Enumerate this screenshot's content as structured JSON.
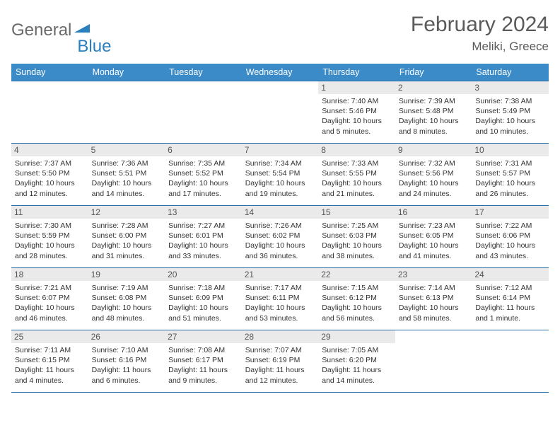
{
  "logo": {
    "text1": "General",
    "text2": "Blue"
  },
  "title": "February 2024",
  "location": "Meliki, Greece",
  "colors": {
    "header_bg": "#3b8bc9",
    "header_border": "#2a6ea5",
    "daynum_bg": "#eaeaea",
    "logo_grey": "#6a6a6a",
    "logo_blue": "#2a7fbf"
  },
  "weekdays": [
    "Sunday",
    "Monday",
    "Tuesday",
    "Wednesday",
    "Thursday",
    "Friday",
    "Saturday"
  ],
  "weeks": [
    [
      {
        "n": "",
        "sunrise": "",
        "sunset": "",
        "daylight": ""
      },
      {
        "n": "",
        "sunrise": "",
        "sunset": "",
        "daylight": ""
      },
      {
        "n": "",
        "sunrise": "",
        "sunset": "",
        "daylight": ""
      },
      {
        "n": "",
        "sunrise": "",
        "sunset": "",
        "daylight": ""
      },
      {
        "n": "1",
        "sunrise": "Sunrise: 7:40 AM",
        "sunset": "Sunset: 5:46 PM",
        "daylight": "Daylight: 10 hours and 5 minutes."
      },
      {
        "n": "2",
        "sunrise": "Sunrise: 7:39 AM",
        "sunset": "Sunset: 5:48 PM",
        "daylight": "Daylight: 10 hours and 8 minutes."
      },
      {
        "n": "3",
        "sunrise": "Sunrise: 7:38 AM",
        "sunset": "Sunset: 5:49 PM",
        "daylight": "Daylight: 10 hours and 10 minutes."
      }
    ],
    [
      {
        "n": "4",
        "sunrise": "Sunrise: 7:37 AM",
        "sunset": "Sunset: 5:50 PM",
        "daylight": "Daylight: 10 hours and 12 minutes."
      },
      {
        "n": "5",
        "sunrise": "Sunrise: 7:36 AM",
        "sunset": "Sunset: 5:51 PM",
        "daylight": "Daylight: 10 hours and 14 minutes."
      },
      {
        "n": "6",
        "sunrise": "Sunrise: 7:35 AM",
        "sunset": "Sunset: 5:52 PM",
        "daylight": "Daylight: 10 hours and 17 minutes."
      },
      {
        "n": "7",
        "sunrise": "Sunrise: 7:34 AM",
        "sunset": "Sunset: 5:54 PM",
        "daylight": "Daylight: 10 hours and 19 minutes."
      },
      {
        "n": "8",
        "sunrise": "Sunrise: 7:33 AM",
        "sunset": "Sunset: 5:55 PM",
        "daylight": "Daylight: 10 hours and 21 minutes."
      },
      {
        "n": "9",
        "sunrise": "Sunrise: 7:32 AM",
        "sunset": "Sunset: 5:56 PM",
        "daylight": "Daylight: 10 hours and 24 minutes."
      },
      {
        "n": "10",
        "sunrise": "Sunrise: 7:31 AM",
        "sunset": "Sunset: 5:57 PM",
        "daylight": "Daylight: 10 hours and 26 minutes."
      }
    ],
    [
      {
        "n": "11",
        "sunrise": "Sunrise: 7:30 AM",
        "sunset": "Sunset: 5:59 PM",
        "daylight": "Daylight: 10 hours and 28 minutes."
      },
      {
        "n": "12",
        "sunrise": "Sunrise: 7:28 AM",
        "sunset": "Sunset: 6:00 PM",
        "daylight": "Daylight: 10 hours and 31 minutes."
      },
      {
        "n": "13",
        "sunrise": "Sunrise: 7:27 AM",
        "sunset": "Sunset: 6:01 PM",
        "daylight": "Daylight: 10 hours and 33 minutes."
      },
      {
        "n": "14",
        "sunrise": "Sunrise: 7:26 AM",
        "sunset": "Sunset: 6:02 PM",
        "daylight": "Daylight: 10 hours and 36 minutes."
      },
      {
        "n": "15",
        "sunrise": "Sunrise: 7:25 AM",
        "sunset": "Sunset: 6:03 PM",
        "daylight": "Daylight: 10 hours and 38 minutes."
      },
      {
        "n": "16",
        "sunrise": "Sunrise: 7:23 AM",
        "sunset": "Sunset: 6:05 PM",
        "daylight": "Daylight: 10 hours and 41 minutes."
      },
      {
        "n": "17",
        "sunrise": "Sunrise: 7:22 AM",
        "sunset": "Sunset: 6:06 PM",
        "daylight": "Daylight: 10 hours and 43 minutes."
      }
    ],
    [
      {
        "n": "18",
        "sunrise": "Sunrise: 7:21 AM",
        "sunset": "Sunset: 6:07 PM",
        "daylight": "Daylight: 10 hours and 46 minutes."
      },
      {
        "n": "19",
        "sunrise": "Sunrise: 7:19 AM",
        "sunset": "Sunset: 6:08 PM",
        "daylight": "Daylight: 10 hours and 48 minutes."
      },
      {
        "n": "20",
        "sunrise": "Sunrise: 7:18 AM",
        "sunset": "Sunset: 6:09 PM",
        "daylight": "Daylight: 10 hours and 51 minutes."
      },
      {
        "n": "21",
        "sunrise": "Sunrise: 7:17 AM",
        "sunset": "Sunset: 6:11 PM",
        "daylight": "Daylight: 10 hours and 53 minutes."
      },
      {
        "n": "22",
        "sunrise": "Sunrise: 7:15 AM",
        "sunset": "Sunset: 6:12 PM",
        "daylight": "Daylight: 10 hours and 56 minutes."
      },
      {
        "n": "23",
        "sunrise": "Sunrise: 7:14 AM",
        "sunset": "Sunset: 6:13 PM",
        "daylight": "Daylight: 10 hours and 58 minutes."
      },
      {
        "n": "24",
        "sunrise": "Sunrise: 7:12 AM",
        "sunset": "Sunset: 6:14 PM",
        "daylight": "Daylight: 11 hours and 1 minute."
      }
    ],
    [
      {
        "n": "25",
        "sunrise": "Sunrise: 7:11 AM",
        "sunset": "Sunset: 6:15 PM",
        "daylight": "Daylight: 11 hours and 4 minutes."
      },
      {
        "n": "26",
        "sunrise": "Sunrise: 7:10 AM",
        "sunset": "Sunset: 6:16 PM",
        "daylight": "Daylight: 11 hours and 6 minutes."
      },
      {
        "n": "27",
        "sunrise": "Sunrise: 7:08 AM",
        "sunset": "Sunset: 6:17 PM",
        "daylight": "Daylight: 11 hours and 9 minutes."
      },
      {
        "n": "28",
        "sunrise": "Sunrise: 7:07 AM",
        "sunset": "Sunset: 6:19 PM",
        "daylight": "Daylight: 11 hours and 12 minutes."
      },
      {
        "n": "29",
        "sunrise": "Sunrise: 7:05 AM",
        "sunset": "Sunset: 6:20 PM",
        "daylight": "Daylight: 11 hours and 14 minutes."
      },
      {
        "n": "",
        "sunrise": "",
        "sunset": "",
        "daylight": ""
      },
      {
        "n": "",
        "sunrise": "",
        "sunset": "",
        "daylight": ""
      }
    ]
  ]
}
